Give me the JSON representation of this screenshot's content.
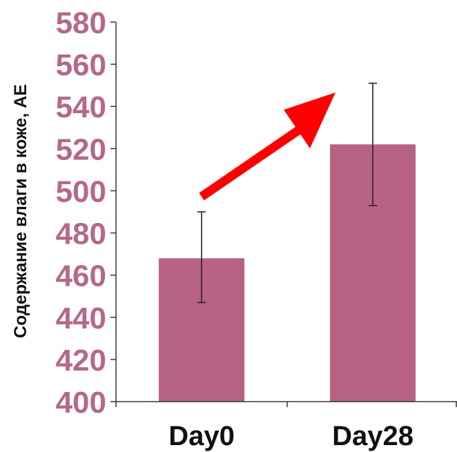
{
  "chart_data": {
    "type": "bar",
    "title": "",
    "xlabel": "",
    "ylabel": "Содержание  влаги  в коже, АЕ",
    "categories": [
      "Day0",
      "Day28"
    ],
    "values": [
      468,
      522
    ],
    "error_bars": [
      {
        "low": 447,
        "high": 490
      },
      {
        "low": 493,
        "high": 551
      }
    ],
    "ylim": [
      400,
      580
    ],
    "yticks": [
      400,
      420,
      440,
      460,
      480,
      500,
      520,
      540,
      560,
      580
    ],
    "ytick_labels": [
      "400",
      "420",
      "440",
      "460",
      "480",
      "500",
      "520",
      "540",
      "560",
      "580"
    ],
    "grid": false,
    "legend": "none",
    "annotation": "red upward arrow from Day0 toward Day28",
    "colors": {
      "bar": "#b86286",
      "tick_text": "#b5688a",
      "axis": "#333333",
      "arrow": "#ff0000"
    }
  }
}
